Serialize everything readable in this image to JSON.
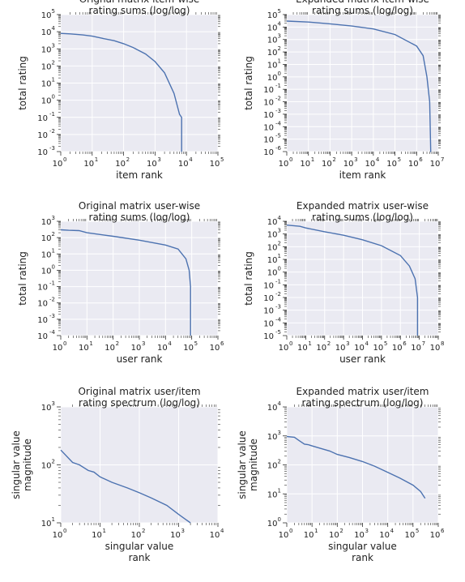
{
  "chart_data": [
    {
      "type": "line",
      "title": [
        "Orignal matrix item-wise",
        "rating sums (log/log)"
      ],
      "xlabel": [
        "item rank"
      ],
      "ylabel": [
        "total rating"
      ],
      "xscale": "log",
      "yscale": "log",
      "xlim_exp": [
        0,
        5
      ],
      "ylim_exp": [
        -3,
        5
      ],
      "grid": true,
      "series": [
        {
          "x": [
            1,
            2,
            5,
            10,
            20,
            50,
            100,
            200,
            500,
            1000,
            2000,
            4000,
            6000,
            7000,
            7000,
            7100
          ],
          "y": [
            8000,
            7500,
            6500,
            5500,
            4200,
            3000,
            2000,
            1200,
            500,
            180,
            40,
            2.5,
            0.15,
            0.1,
            0.001,
            0.001
          ]
        }
      ]
    },
    {
      "type": "line",
      "title": [
        "Expanded matrix item-wise",
        "rating sums (log/log)"
      ],
      "xlabel": [
        "item rank"
      ],
      "ylabel": [
        "total rating"
      ],
      "xscale": "log",
      "yscale": "log",
      "xlim_exp": [
        0,
        7
      ],
      "ylim_exp": [
        -6,
        5
      ],
      "grid": true,
      "series": [
        {
          "x": [
            1,
            10,
            100,
            1000,
            10000,
            100000,
            1000000,
            2000000,
            3000000,
            4000000,
            4500000,
            4600000
          ],
          "y": [
            30000,
            25000,
            18000,
            12000,
            7000,
            2500,
            300,
            50,
            1,
            0.01,
            1e-06,
            1e-06
          ]
        }
      ]
    },
    {
      "type": "line",
      "title": [
        "Original matrix user-wise",
        "rating sums (log/log)"
      ],
      "xlabel": [
        "user rank"
      ],
      "ylabel": [
        "total rating"
      ],
      "xscale": "log",
      "yscale": "log",
      "xlim_exp": [
        0,
        6
      ],
      "ylim_exp": [
        -4,
        3
      ],
      "grid": true,
      "series": [
        {
          "x": [
            1,
            2,
            5,
            10,
            100,
            1000,
            10000,
            30000,
            60000,
            80000,
            90000,
            90000
          ],
          "y": [
            300,
            280,
            270,
            200,
            120,
            70,
            35,
            20,
            5,
            1,
            0.1,
            0.0001
          ]
        }
      ]
    },
    {
      "type": "line",
      "title": [
        "Expanded matrix user-wise",
        "rating sums (log/log)"
      ],
      "xlabel": [
        "user rank"
      ],
      "ylabel": [
        "total rating"
      ],
      "xscale": "log",
      "yscale": "log",
      "xlim_exp": [
        0,
        8
      ],
      "ylim_exp": [
        -5,
        4
      ],
      "grid": true,
      "series": [
        {
          "x": [
            1,
            5,
            10,
            100,
            1000,
            10000,
            100000,
            1000000,
            3000000,
            6000000,
            8000000,
            8000000
          ],
          "y": [
            5000,
            4000,
            3000,
            1500,
            800,
            350,
            120,
            20,
            3,
            0.3,
            0.01,
            1e-05
          ]
        }
      ]
    },
    {
      "type": "line",
      "title": [
        "Original matrix user/item",
        "rating spectrum (log/log)"
      ],
      "xlabel": [
        "singular value",
        "rank"
      ],
      "ylabel": [
        "singular value",
        "magnitude"
      ],
      "xscale": "log",
      "yscale": "log",
      "xlim_exp": [
        0,
        4
      ],
      "ylim_exp": [
        1,
        3
      ],
      "grid": true,
      "series": [
        {
          "x": [
            1,
            2,
            3,
            5,
            7,
            10,
            20,
            50,
            100,
            200,
            500,
            1000,
            1500,
            2000
          ],
          "y": [
            180,
            110,
            100,
            80,
            75,
            62,
            50,
            40,
            33,
            27,
            20,
            14,
            11.5,
            10
          ]
        }
      ]
    },
    {
      "type": "line",
      "title": [
        "Expanded matrix user/item",
        "rating spectrum (log/log)"
      ],
      "xlabel": [
        "singular value",
        "rank"
      ],
      "ylabel": [
        "singular value",
        "magnitude"
      ],
      "xscale": "log",
      "yscale": "log",
      "xlim_exp": [
        0,
        6
      ],
      "ylim_exp": [
        0,
        4
      ],
      "grid": true,
      "series": [
        {
          "x": [
            1,
            2,
            3,
            5,
            7,
            10,
            20,
            50,
            100,
            300,
            1000,
            3000,
            10000,
            30000,
            100000,
            200000,
            300000
          ],
          "y": [
            950,
            900,
            700,
            520,
            500,
            450,
            380,
            300,
            230,
            180,
            130,
            90,
            55,
            35,
            20,
            12,
            7
          ]
        }
      ]
    }
  ]
}
